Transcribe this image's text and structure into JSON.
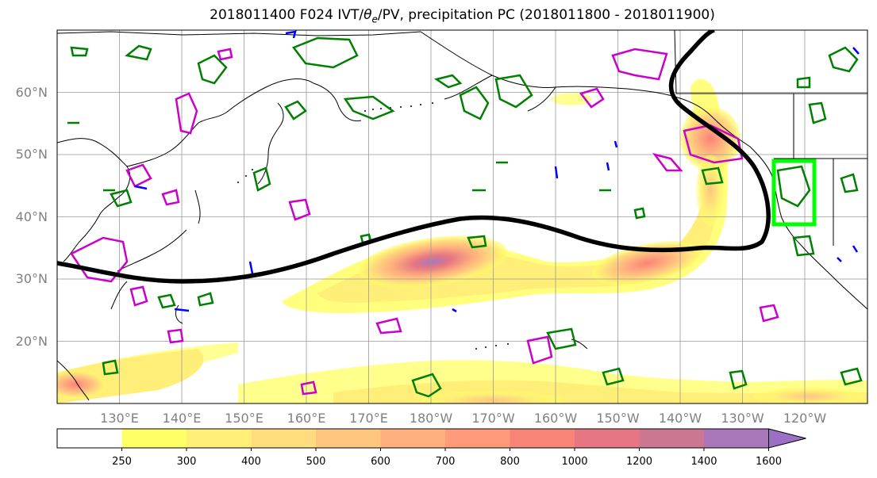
{
  "title": "2018011400 F024 IVT/θe/PV, precipitation PC (2018011800 - 2018011900)",
  "map": {
    "lat_labels": [
      "60°N",
      "50°N",
      "40°N",
      "30°N",
      "20°N"
    ],
    "lon_labels": [
      "130°E",
      "140°E",
      "150°E",
      "160°E",
      "170°E",
      "180°W",
      "170°W",
      "160°W",
      "150°W",
      "140°W",
      "130°W",
      "120°W"
    ],
    "extent": {
      "lon_min": 120,
      "lon_max": 250,
      "lat_min": 10,
      "lat_max": 70
    },
    "highlight_box": {
      "lon_min": 235.5,
      "lon_max": 242,
      "lat_min": 38.5,
      "lat_max": 49,
      "color": "#00ff00"
    },
    "contour_colors": {
      "theta_e": "#008000",
      "pv": "#cc00cc",
      "negative": "#0000ff",
      "trajectory": "#000000"
    }
  },
  "colorbar": {
    "levels": [
      "250",
      "300",
      "400",
      "500",
      "600",
      "700",
      "800",
      "1000",
      "1200",
      "1400",
      "1600"
    ],
    "colors": [
      "#ffffff",
      "#ffff66",
      "#ffee77",
      "#ffdc7e",
      "#ffc680",
      "#ffb07e",
      "#ff9a7a",
      "#f88478",
      "#e67782",
      "#cc7792",
      "#aa77bb"
    ],
    "extend": "max"
  }
}
